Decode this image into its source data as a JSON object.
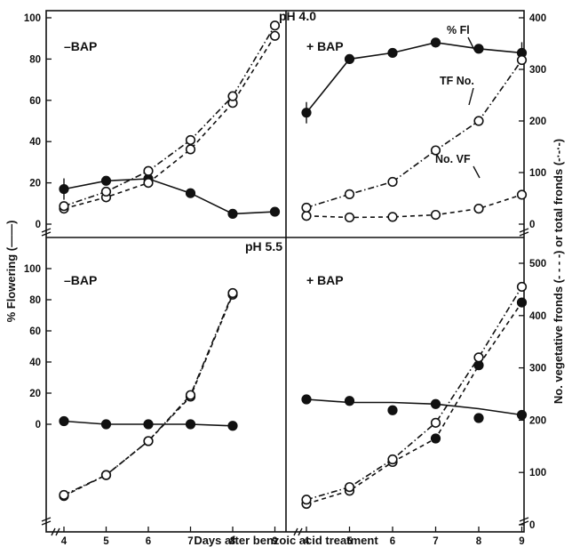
{
  "chart_data": {
    "type": "line",
    "xlabel": "Days after benzoic acid treatment",
    "ylabel_left": "% Flowering (——)",
    "ylabel_right": "No. vegetative fronds (- - - -) or total fronds (-·-·-)",
    "x_ticks": [
      "4",
      "5",
      "6",
      "7",
      "8",
      "9"
    ],
    "top_row_label": "pH 4.0",
    "bottom_row_label": "pH 5.5",
    "annotations": {
      "percent_flowering": "% Fl",
      "total_fronds": "TF No.",
      "vegetative_fronds": "No. VF"
    },
    "series_legend": {
      "percent_flowering": "solid line, filled circles",
      "vegetative_fronds": "dashed line",
      "total_fronds": "dash-dot line, open circles"
    },
    "panels": [
      {
        "id": "ph4-minus-bap",
        "label": "–BAP",
        "ph": "pH 4.0",
        "left_ticks": [
          "0",
          "20",
          "40",
          "60",
          "80",
          "100"
        ],
        "left_ylim": [
          0,
          100
        ],
        "right_ylim": [
          0,
          400
        ],
        "series": [
          {
            "key": "percent_flowering",
            "x": [
              4,
              5,
              6,
              7,
              8,
              9
            ],
            "y": [
              17,
              21,
              22,
              15,
              5,
              6
            ],
            "error_bar_at": [
              4
            ]
          },
          {
            "key": "vegetative_fronds",
            "x": [
              4,
              5,
              6,
              7,
              8,
              9
            ],
            "y": [
              30,
              52,
              80,
              145,
              235,
              365
            ]
          },
          {
            "key": "total_fronds",
            "x": [
              4,
              5,
              6,
              7,
              8,
              9
            ],
            "y": [
              35,
              63,
              103,
              163,
              248,
              385
            ]
          }
        ]
      },
      {
        "id": "ph4-plus-bap",
        "label": "+ BAP",
        "ph": "pH 4.0",
        "right_ticks": [
          "0",
          "100",
          "200",
          "300",
          "400"
        ],
        "left_ylim": [
          0,
          100
        ],
        "right_ylim": [
          0,
          400
        ],
        "series": [
          {
            "key": "percent_flowering",
            "x": [
              4,
              5,
              6,
              7,
              8,
              9
            ],
            "y": [
              54,
              80,
              83,
              88,
              85,
              83
            ],
            "error_bar_at": [
              4,
              9
            ]
          },
          {
            "key": "vegetative_fronds",
            "x": [
              4,
              5,
              6,
              7,
              8,
              9
            ],
            "y": [
              16,
              13,
              14,
              18,
              30,
              57
            ]
          },
          {
            "key": "total_fronds",
            "x": [
              4,
              5,
              6,
              7,
              8,
              9
            ],
            "y": [
              32,
              58,
              82,
              143,
              200,
              318
            ]
          }
        ]
      },
      {
        "id": "ph55-minus-bap",
        "label": "–BAP",
        "ph": "pH 5.5",
        "left_ticks": [
          "0",
          "20",
          "40",
          "60",
          "80",
          "100"
        ],
        "left_ylim": [
          0,
          120
        ],
        "right_ylim": [
          0,
          480
        ],
        "series": [
          {
            "key": "percent_flowering",
            "x": [
              4,
              5,
              6,
              7,
              8
            ],
            "y": [
              2,
              0,
              0,
              0,
              -1
            ]
          },
          {
            "key": "vegetative_fronds",
            "x": [
              4,
              5,
              6,
              7,
              8
            ],
            "y": [
              55,
              95,
              160,
              245,
              440
            ]
          },
          {
            "key": "total_fronds",
            "x": [
              4,
              5,
              6,
              7,
              8
            ],
            "y": [
              57,
              95,
              160,
              248,
              443
            ]
          }
        ]
      },
      {
        "id": "ph55-plus-bap",
        "label": "+ BAP",
        "ph": "pH 5.5",
        "right_ticks": [
          "0",
          "100",
          "200",
          "300",
          "400",
          "500"
        ],
        "left_ylim": [
          0,
          120
        ],
        "right_ylim": [
          0,
          500
        ],
        "series": [
          {
            "key": "percent_flowering",
            "x": [
              4,
              5,
              6,
              7,
              8,
              9
            ],
            "y": [
              16,
              14,
              14,
              13,
              10,
              6
            ],
            "scatter_x": [
              4,
              5,
              6,
              7,
              8,
              9
            ],
            "scatter_y": [
              16,
              15,
              9,
              13,
              4,
              6
            ]
          },
          {
            "key": "vegetative_fronds",
            "x": [
              4,
              5,
              6,
              7,
              8,
              9
            ],
            "y": [
              40,
              65,
              120,
              165,
              305,
              425
            ],
            "filled_points": [
              7,
              8,
              9
            ]
          },
          {
            "key": "total_fronds",
            "x": [
              4,
              5,
              6,
              7,
              8,
              9
            ],
            "y": [
              48,
              72,
              125,
              195,
              320,
              455
            ]
          }
        ]
      }
    ]
  }
}
